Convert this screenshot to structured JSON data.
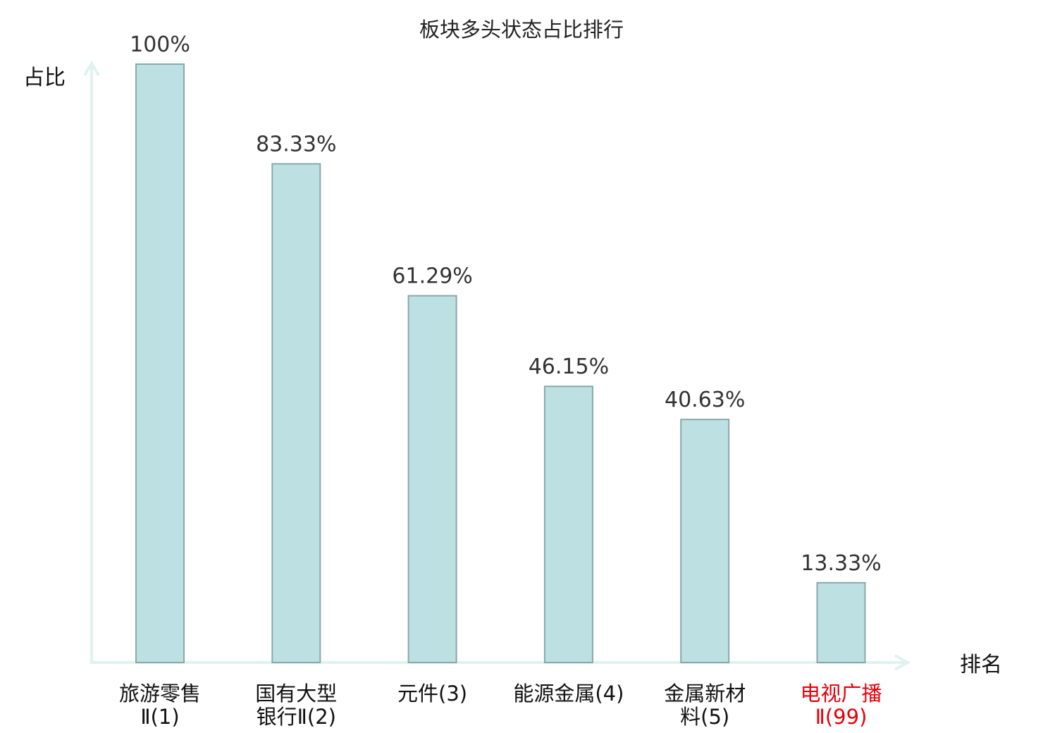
{
  "chart_data": {
    "type": "bar",
    "title": "板块多头状态占比排行",
    "ylabel": "占比",
    "xlabel": "排名",
    "ylim": [
      0,
      100
    ],
    "grid": false,
    "categories": [
      [
        "旅游零售",
        "Ⅱ(1)"
      ],
      [
        "国有大型",
        "银行Ⅱ(2)"
      ],
      [
        "元件(3)"
      ],
      [
        "能源金属(4)"
      ],
      [
        "金属新材",
        "料(5)"
      ],
      [
        "电视广播",
        "Ⅱ(99)"
      ]
    ],
    "values": [
      100,
      83.33,
      61.29,
      46.15,
      40.63,
      13.33
    ],
    "value_labels": [
      "100%",
      "83.33%",
      "61.29%",
      "46.15%",
      "40.63%",
      "13.33%"
    ],
    "highlight_index": 5,
    "colors": {
      "bar_fill": "#bde0e2",
      "bar_stroke": "#8aa8ab",
      "axis": "#dff2ef",
      "highlight_text": "#e8000b",
      "text": "#111111"
    }
  }
}
